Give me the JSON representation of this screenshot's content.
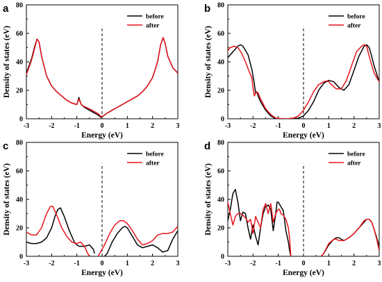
{
  "colors": {
    "before": "#000000",
    "after": "#e8141b",
    "axis": "#000000",
    "fermi": "#000000"
  },
  "chart_data": [
    {
      "type": "line",
      "panel": "a",
      "xlabel": "Energy (eV)",
      "ylabel": "Density of states (eV)",
      "xlim": [
        -3,
        3
      ],
      "ylim": [
        0,
        80
      ],
      "xticks": [
        "-3",
        "-2",
        "-1",
        "0",
        "1",
        "2",
        "3"
      ],
      "yticks": [
        "0",
        "20",
        "40",
        "60",
        "80"
      ],
      "fermi_level": 0,
      "legend": {
        "position": "top-right",
        "entries": [
          "before",
          "after"
        ]
      },
      "series": [
        {
          "name": "before",
          "color": "#000000",
          "x": [
            -3,
            -2.8,
            -2.65,
            -2.58,
            -2.5,
            -2.4,
            -2.2,
            -2.0,
            -1.8,
            -1.6,
            -1.4,
            -1.2,
            -1.0,
            -0.92,
            -0.85,
            -0.8,
            -0.7,
            -0.5,
            -0.3,
            -0.15,
            -0.05,
            0.05,
            0.2,
            0.4,
            0.6,
            0.8,
            1.0,
            1.2,
            1.4,
            1.6,
            1.8,
            2.0,
            2.2,
            2.32,
            2.42,
            2.5,
            2.6,
            2.8,
            3.0
          ],
          "y": [
            32,
            42,
            52,
            56,
            54,
            44,
            30,
            23,
            19,
            16,
            13,
            11,
            10,
            15,
            11,
            9.5,
            8,
            6,
            4,
            2.5,
            1,
            2,
            4,
            6,
            8,
            10,
            12,
            14,
            16,
            19,
            23,
            29,
            40,
            52,
            57,
            53,
            44,
            36,
            32
          ]
        },
        {
          "name": "after",
          "color": "#e8141b",
          "x": [
            -3,
            -2.8,
            -2.65,
            -2.58,
            -2.5,
            -2.4,
            -2.2,
            -2.0,
            -1.8,
            -1.6,
            -1.4,
            -1.2,
            -1.0,
            -0.92,
            -0.85,
            -0.8,
            -0.7,
            -0.5,
            -0.3,
            -0.15,
            -0.05,
            0.05,
            0.2,
            0.4,
            0.6,
            0.8,
            1.0,
            1.2,
            1.4,
            1.6,
            1.8,
            2.0,
            2.2,
            2.32,
            2.42,
            2.5,
            2.6,
            2.8,
            3.0
          ],
          "y": [
            31,
            41,
            51,
            56,
            54,
            44,
            30,
            23,
            19,
            16,
            13,
            11,
            10,
            14,
            11,
            9.5,
            8.5,
            7,
            5,
            3.5,
            1.5,
            2,
            4,
            6,
            8,
            10,
            12,
            14,
            16,
            19,
            23,
            29,
            40,
            52,
            57,
            53,
            44,
            36,
            32
          ]
        }
      ]
    },
    {
      "type": "line",
      "panel": "b",
      "xlabel": "Energy (eV)",
      "ylabel": "Density of states (eV)",
      "xlim": [
        -3,
        3
      ],
      "ylim": [
        0,
        80
      ],
      "xticks": [
        "-3",
        "-2",
        "-1",
        "0",
        "1",
        "2",
        "3"
      ],
      "yticks": [
        "0",
        "20",
        "40",
        "60",
        "80"
      ],
      "fermi_level": 0,
      "legend": {
        "position": "top-right",
        "entries": [
          "before",
          "after"
        ]
      },
      "series": [
        {
          "name": "before",
          "color": "#000000",
          "x": [
            -3,
            -2.8,
            -2.6,
            -2.5,
            -2.4,
            -2.2,
            -2.05,
            -1.95,
            -1.9,
            -1.85,
            -1.8,
            -1.7,
            -1.5,
            -1.3,
            -1.1,
            -0.9,
            -0.6,
            -0.4,
            -0.2,
            0.0,
            0.2,
            0.4,
            0.6,
            0.8,
            1.0,
            1.2,
            1.4,
            1.6,
            1.8,
            2.0,
            2.2,
            2.4,
            2.5,
            2.6,
            2.7,
            2.8,
            3.0
          ],
          "y": [
            43,
            47,
            51,
            52,
            51,
            45,
            35,
            25,
            18,
            19,
            16,
            12,
            6,
            2,
            0,
            0,
            0,
            0,
            0.5,
            2,
            6,
            12,
            20,
            25,
            27,
            26,
            22,
            20,
            24,
            34,
            44,
            51,
            52,
            50,
            44,
            37,
            26
          ]
        },
        {
          "name": "after",
          "color": "#e8141b",
          "x": [
            -3,
            -2.9,
            -2.75,
            -2.6,
            -2.45,
            -2.3,
            -2.15,
            -2.05,
            -2.0,
            -1.95,
            -1.9,
            -1.85,
            -1.8,
            -1.7,
            -1.5,
            -1.3,
            -1.1,
            -0.8,
            -0.6,
            -0.4,
            -0.2,
            0.0,
            0.2,
            0.4,
            0.6,
            0.8,
            0.9,
            1.0,
            1.1,
            1.3,
            1.5,
            1.7,
            1.9,
            2.1,
            2.3,
            2.4,
            2.5,
            2.6,
            2.8,
            3.0
          ],
          "y": [
            48,
            50,
            51,
            50,
            46,
            40,
            33,
            29,
            22,
            16,
            18,
            19,
            18,
            14,
            7,
            3,
            0.5,
            0,
            0,
            0.5,
            2,
            6,
            12,
            19,
            24,
            26,
            26.5,
            26,
            24,
            21,
            21,
            27,
            37,
            47,
            51,
            52,
            51,
            44,
            32,
            26
          ]
        }
      ]
    },
    {
      "type": "line",
      "panel": "c",
      "xlabel": "Energy (eV)",
      "ylabel": "Density of states (eV)",
      "xlim": [
        -3,
        3
      ],
      "ylim": [
        0,
        80
      ],
      "xticks": [
        "-3",
        "-2",
        "-1",
        "0",
        "1",
        "2",
        "3"
      ],
      "yticks": [
        "0",
        "20",
        "40",
        "60",
        "80"
      ],
      "fermi_level": 0,
      "legend": {
        "position": "top-right",
        "entries": [
          "before",
          "after"
        ]
      },
      "series": [
        {
          "name": "before",
          "color": "#000000",
          "x": [
            -3,
            -2.8,
            -2.6,
            -2.4,
            -2.2,
            -2.0,
            -1.85,
            -1.75,
            -1.65,
            -1.5,
            -1.3,
            -1.1,
            -1.0,
            -0.9,
            -0.7,
            -0.5,
            -0.35,
            -0.3,
            null,
            0.1,
            0.2,
            0.4,
            0.6,
            0.8,
            0.9,
            1.0,
            1.2,
            1.4,
            1.6,
            1.8,
            2.0,
            2.2,
            2.4,
            2.6,
            2.8,
            3.0
          ],
          "y": [
            10,
            9,
            9,
            10,
            13,
            20,
            29,
            33,
            34,
            28,
            18,
            10,
            8,
            7,
            7,
            8,
            5,
            2,
            null,
            0,
            2,
            10,
            16,
            20,
            21,
            20,
            14,
            8,
            6,
            7,
            8,
            6,
            3,
            4,
            12,
            18
          ]
        },
        {
          "name": "after",
          "color": "#e8141b",
          "x": [
            -3,
            -2.8,
            -2.6,
            -2.4,
            -2.2,
            -2.05,
            -1.95,
            -1.8,
            -1.6,
            -1.4,
            -1.2,
            -1.0,
            -0.85,
            -0.7,
            -0.6,
            -0.5,
            null,
            -0.15,
            -0.1,
            0.1,
            0.3,
            0.5,
            0.7,
            0.85,
            1.0,
            1.2,
            1.4,
            1.6,
            1.8,
            2.0,
            2.2,
            2.4,
            2.6,
            2.8,
            3.0
          ],
          "y": [
            17,
            15,
            15,
            20,
            30,
            35,
            35,
            29,
            20,
            14,
            10,
            9,
            10,
            7,
            3,
            0,
            null,
            0,
            2,
            8,
            16,
            22,
            25,
            25,
            23,
            18,
            12,
            8,
            9,
            11,
            15,
            16,
            16,
            17,
            21
          ]
        }
      ]
    },
    {
      "type": "line",
      "panel": "d",
      "xlabel": "Energy (eV)",
      "ylabel": "Density of states (eV)",
      "xlim": [
        -3,
        3
      ],
      "ylim": [
        0,
        80
      ],
      "xticks": [
        "-3",
        "-2",
        "-1",
        "0",
        "1",
        "2",
        "3"
      ],
      "yticks": [
        "0",
        "20",
        "40",
        "60",
        "80"
      ],
      "fermi_level": 0,
      "legend": {
        "position": "top-right",
        "entries": [
          "before",
          "after"
        ]
      },
      "series": [
        {
          "name": "before",
          "color": "#000000",
          "x": [
            -3,
            -2.9,
            -2.8,
            -2.7,
            -2.6,
            -2.5,
            -2.4,
            -2.3,
            -2.2,
            -2.1,
            -2.0,
            -1.9,
            -1.8,
            -1.7,
            -1.6,
            -1.5,
            -1.4,
            -1.3,
            -1.2,
            -1.1,
            -1.05,
            -1.0,
            -0.9,
            -0.8,
            -0.75,
            -0.7,
            -0.6,
            -0.55,
            -0.5,
            null,
            0.7,
            0.8,
            1.0,
            1.2,
            1.3,
            1.4,
            1.5,
            1.6,
            1.8,
            2.0,
            2.2,
            2.4,
            2.5,
            2.6,
            2.7,
            2.8,
            2.9,
            3.0
          ],
          "y": [
            25,
            33,
            44,
            47,
            38,
            25,
            31,
            30,
            20,
            12,
            22,
            14,
            8,
            20,
            30,
            35,
            36,
            33,
            18,
            30,
            38,
            38,
            35,
            32,
            25,
            18,
            10,
            4,
            0,
            null,
            0,
            2,
            8,
            12,
            13,
            13,
            12,
            11,
            13,
            16,
            20,
            24,
            26,
            26,
            24,
            19,
            13,
            7
          ]
        },
        {
          "name": "after",
          "color": "#e8141b",
          "x": [
            -3,
            -2.9,
            -2.8,
            -2.7,
            -2.6,
            -2.5,
            -2.4,
            -2.3,
            -2.2,
            -2.1,
            -2.0,
            -1.9,
            -1.8,
            -1.7,
            -1.6,
            -1.5,
            -1.4,
            -1.3,
            -1.2,
            -1.1,
            -1.0,
            -0.95,
            -0.9,
            -0.8,
            -0.7,
            -0.6,
            -0.55,
            -0.5,
            null,
            0.7,
            0.8,
            1.0,
            1.2,
            1.3,
            1.4,
            1.5,
            1.6,
            1.8,
            2.0,
            2.2,
            2.4,
            2.5,
            2.6,
            2.7,
            2.8,
            2.9,
            3.0
          ],
          "y": [
            38,
            30,
            22,
            28,
            30,
            30,
            29,
            27,
            24,
            26,
            16,
            28,
            24,
            20,
            33,
            37,
            30,
            37,
            24,
            30,
            33,
            33,
            30,
            29,
            26,
            20,
            12,
            0,
            null,
            0,
            2,
            9,
            12,
            12,
            11,
            11,
            11,
            13,
            16,
            20,
            25,
            26,
            26,
            24,
            19,
            12,
            4
          ]
        }
      ]
    }
  ]
}
